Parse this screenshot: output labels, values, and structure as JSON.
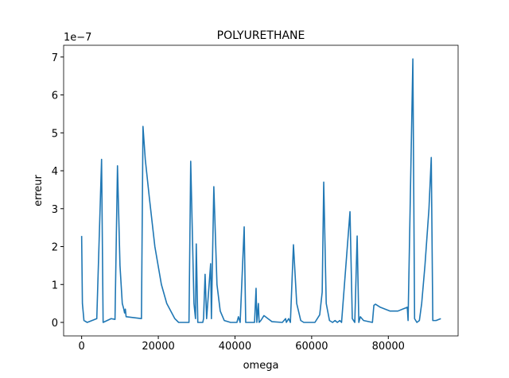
{
  "chart_data": {
    "type": "line",
    "title": "POLYURETHANE",
    "x_label": "omega",
    "y_label": "erreur",
    "y_offset_label": "1e−7",
    "xlim": [
      -4700,
      98200
    ],
    "ylim": [
      -0.356,
      7.31
    ],
    "xticks": [
      0,
      20000,
      40000,
      60000,
      80000
    ],
    "yticks": [
      0,
      1,
      2,
      3,
      4,
      5,
      6,
      7
    ],
    "x": [
      0,
      200,
      600,
      1450,
      3950,
      5200,
      5600,
      6650,
      7700,
      8700,
      9350,
      10000,
      10600,
      11000,
      11200,
      11400,
      11600,
      15600,
      16000,
      16600,
      17650,
      19100,
      20800,
      22200,
      24300,
      25300,
      28000,
      28450,
      29300,
      29700,
      29900,
      30300,
      31600,
      31800,
      32200,
      32600,
      33650,
      33850,
      34480,
      35300,
      36150,
      37200,
      38850,
      40500,
      40900,
      41350,
      42400,
      42800,
      45100,
      45500,
      45700,
      46100,
      46300,
      46750,
      47550,
      48600,
      49650,
      52350,
      53200,
      53400,
      54000,
      54450,
      55250,
      56100,
      57150,
      57950,
      60850,
      62100,
      62750,
      63150,
      63800,
      64650,
      65450,
      66100,
      66700,
      67350,
      67800,
      70000,
      70600,
      71250,
      71870,
      72300,
      72700,
      73550,
      75850,
      76230,
      76650,
      77900,
      80400,
      82500,
      84950,
      85150,
      86400,
      86850,
      87450,
      88100,
      88700,
      89550,
      90600,
      91200,
      91600,
      92450,
      93700
    ],
    "series": [
      {
        "color": "#1f77b4",
        "values": [
          2.28,
          0.5,
          0.05,
          0,
          0.1,
          4.3,
          0,
          0.05,
          0.1,
          0.08,
          4.13,
          1.5,
          0.5,
          0.35,
          0.25,
          0.35,
          0.15,
          0.1,
          5.17,
          4.3,
          3.3,
          2.0,
          1.0,
          0.5,
          0.1,
          0,
          0,
          4.25,
          0.5,
          0.1,
          2.07,
          0,
          0,
          0.1,
          1.27,
          0.1,
          1.55,
          0.1,
          3.58,
          1.0,
          0.3,
          0.05,
          0,
          0,
          0.15,
          0,
          2.52,
          0,
          0,
          0.9,
          0,
          0.5,
          0,
          0.05,
          0.18,
          0.1,
          0.02,
          0,
          0.1,
          0,
          0.1,
          0,
          2.05,
          0.5,
          0.05,
          0,
          0,
          0.2,
          0.8,
          3.7,
          0.5,
          0.05,
          0,
          0.05,
          0,
          0.05,
          0,
          2.92,
          0.1,
          0,
          2.28,
          0,
          0.15,
          0.05,
          0,
          0.45,
          0.48,
          0.4,
          0.3,
          0.3,
          0.4,
          0.05,
          6.95,
          0.1,
          0,
          0.05,
          0.5,
          1.5,
          3.0,
          4.35,
          0.05,
          0.05,
          0.1
        ]
      }
    ]
  }
}
